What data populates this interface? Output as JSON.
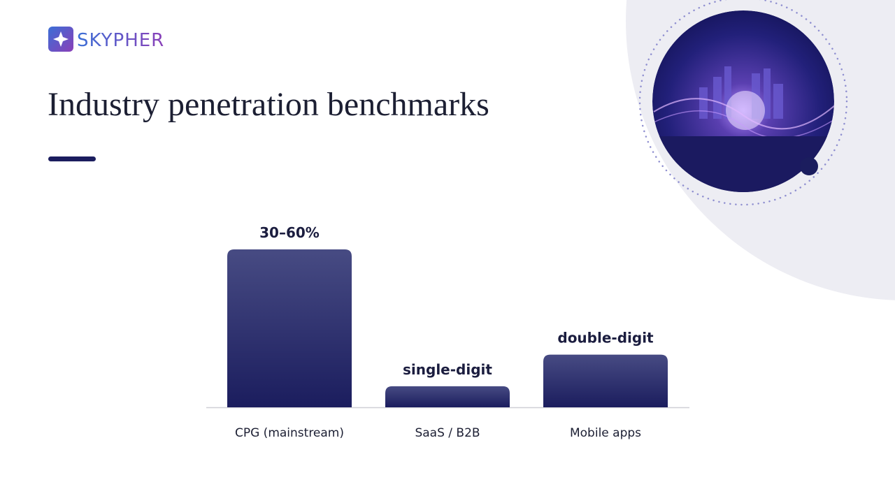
{
  "brand": "SKYPHER",
  "chart_data": {
    "type": "bar",
    "title": "Industry penetration benchmarks",
    "categories": [
      "CPG (mainstream)",
      "SaaS / B2B",
      "Mobile apps"
    ],
    "values": [
      45,
      6,
      15
    ],
    "value_labels": [
      "30–60%",
      "single-digit",
      "double-digit"
    ],
    "color": "#1b1d5e"
  }
}
